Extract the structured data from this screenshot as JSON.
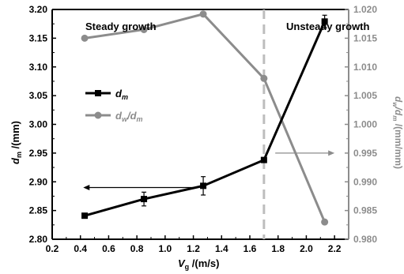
{
  "chart_data": {
    "type": "line",
    "annotations": {
      "left_region": "Steady growth",
      "right_region": "Unsteady growth",
      "threshold_x": 1.7
    },
    "x_axis": {
      "label_main": "V",
      "label_sub": "g",
      "label_unit": " /(m/s)",
      "range": [
        0.2,
        2.3
      ],
      "ticks": [
        "0.2",
        "0.4",
        "0.6",
        "0.8",
        "1.0",
        "1.2",
        "1.4",
        "1.6",
        "1.8",
        "2.0",
        "2.2"
      ]
    },
    "y_left": {
      "label_main": "d",
      "label_sub": "m",
      "label_unit": " /(mm)",
      "range": [
        2.8,
        3.2
      ],
      "ticks": [
        "2.80",
        "2.85",
        "2.90",
        "2.95",
        "3.00",
        "3.05",
        "3.10",
        "3.15",
        "3.20"
      ],
      "color": "#000000"
    },
    "y_right": {
      "label_a": "d",
      "label_a_sub": "w",
      "label_b": "/d",
      "label_b_sub": "m",
      "label_unit": " /(mm/mm)",
      "range": [
        0.98,
        1.02
      ],
      "ticks": [
        "0.980",
        "0.985",
        "0.990",
        "0.995",
        "1.000",
        "1.005",
        "1.010",
        "1.015",
        "1.020"
      ],
      "color": "#8c8c8c"
    },
    "series": [
      {
        "name_main": "d",
        "name_sub": "m",
        "axis": "left",
        "marker": "square",
        "color": "#000000",
        "x": [
          0.43,
          0.85,
          1.27,
          1.7,
          2.13
        ],
        "y": [
          2.841,
          2.87,
          2.893,
          2.938,
          3.179
        ],
        "err": [
          0.004,
          0.012,
          0.016,
          0.0,
          0.011
        ]
      },
      {
        "name_a": "d",
        "name_a_sub": "w",
        "name_b": "/d",
        "name_b_sub": "m",
        "axis": "right",
        "marker": "circle",
        "color": "#8c8c8c",
        "x": [
          0.43,
          0.85,
          1.27,
          1.7,
          2.13
        ],
        "y": [
          1.015,
          1.0165,
          1.0192,
          1.008,
          0.983
        ]
      }
    ],
    "arrows": [
      {
        "direction": "left",
        "axis": "left",
        "x_from": 1.2,
        "x_to": 0.42,
        "y": 2.89
      },
      {
        "direction": "right",
        "axis": "left",
        "x_from": 1.78,
        "x_to": 2.2,
        "y": 2.95
      }
    ],
    "grid": false,
    "legend_position": "center-left"
  }
}
